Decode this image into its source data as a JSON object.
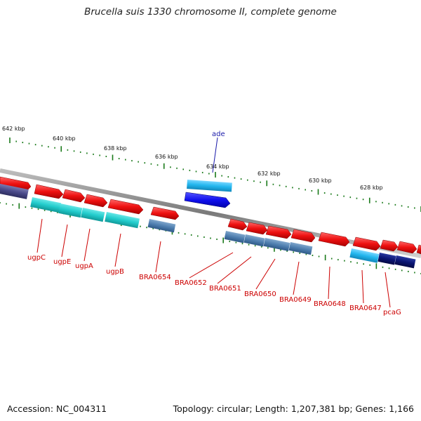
{
  "title": "Brucella suis 1330 chromosome II, complete genome",
  "footer": {
    "accession": "Accession: NC_004311",
    "summary": "Topology: circular; Length: 1,207,381 bp; Genes: 1,166"
  },
  "colors": {
    "forward_gene": "#ee1111",
    "cyan_gene": "#22cccc",
    "steel_gene": "#4f7fb0",
    "light_blue_gene": "#22b6ee",
    "navy_gene": "#0b1573",
    "purple_gene": "#4a4a8a",
    "blue_gene": "#1010ee",
    "backbone": "#888888",
    "ticks": "#1a7a1a",
    "label_red": "#cc0000",
    "label_blue": "#1a1aaa"
  },
  "scale": {
    "unit": "kbp",
    "tick_labels": [
      "642 kbp",
      "640 kbp",
      "638 kbp",
      "636 kbp",
      "634 kbp",
      "632 kbp",
      "630 kbp",
      "628 kbp"
    ]
  },
  "genes": [
    {
      "label": "ade",
      "color_key": "blue_gene",
      "label_color": "label_blue"
    },
    {
      "label": "ugpC",
      "color_key": "cyan_gene",
      "label_color": "label_red"
    },
    {
      "label": "ugpE",
      "color_key": "cyan_gene",
      "label_color": "label_red"
    },
    {
      "label": "ugpA",
      "color_key": "cyan_gene",
      "label_color": "label_red"
    },
    {
      "label": "ugpB",
      "color_key": "cyan_gene",
      "label_color": "label_red"
    },
    {
      "label": "BRA0654",
      "color_key": "steel_gene",
      "label_color": "label_red"
    },
    {
      "label": "BRA0652",
      "color_key": "steel_gene",
      "label_color": "label_red"
    },
    {
      "label": "BRA0651",
      "color_key": "steel_gene",
      "label_color": "label_red"
    },
    {
      "label": "BRA0650",
      "color_key": "steel_gene",
      "label_color": "label_red"
    },
    {
      "label": "BRA0649",
      "color_key": "steel_gene",
      "label_color": "label_red"
    },
    {
      "label": "BRA0648",
      "color_key": "forward_gene",
      "label_color": "label_red"
    },
    {
      "label": "BRA0647",
      "color_key": "light_blue_gene",
      "label_color": "label_red"
    },
    {
      "label": "pcaG",
      "color_key": "navy_gene",
      "label_color": "label_red"
    }
  ]
}
